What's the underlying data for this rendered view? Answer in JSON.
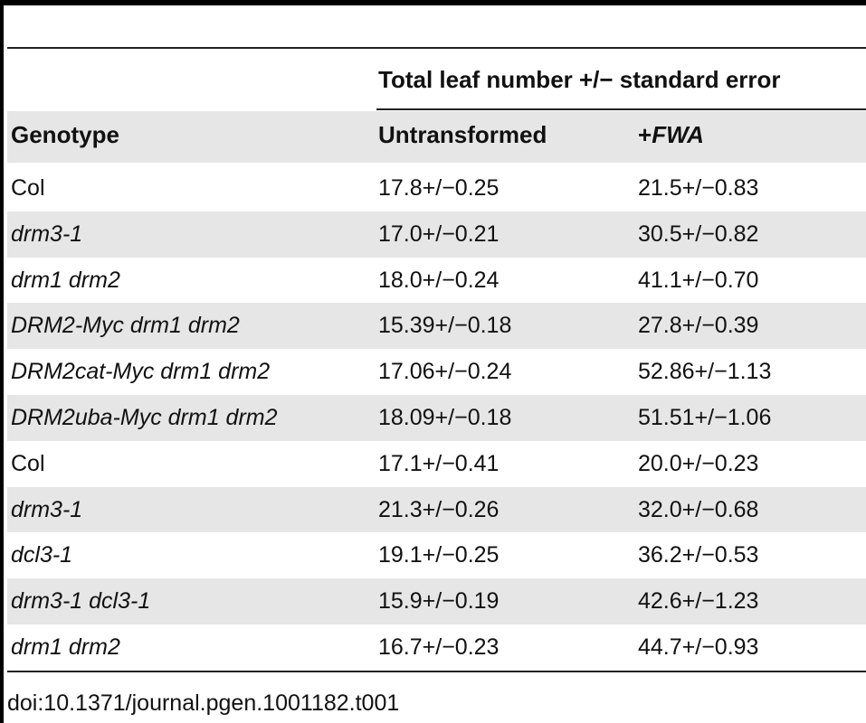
{
  "table": {
    "group_header": "Total leaf number +/− standard error",
    "columns": {
      "genotype": "Genotype",
      "untransformed": "Untransformed",
      "fwa_plus": "+",
      "fwa_name": "FWA"
    },
    "rows": [
      {
        "genotype": "Col",
        "untransformed": "17.8+/−0.25",
        "fwa": "21.5+/−0.83"
      },
      {
        "genotype": "drm3-1",
        "untransformed": "17.0+/−0.21",
        "fwa": "30.5+/−0.82"
      },
      {
        "genotype": "drm1 drm2",
        "untransformed": "18.0+/−0.24",
        "fwa": "41.1+/−0.70"
      },
      {
        "genotype": "DRM2-Myc drm1 drm2",
        "untransformed": "15.39+/−0.18",
        "fwa": "27.8+/−0.39"
      },
      {
        "genotype": "DRM2cat-Myc drm1 drm2",
        "untransformed": "17.06+/−0.24",
        "fwa": "52.86+/−1.13"
      },
      {
        "genotype": "DRM2uba-Myc drm1 drm2",
        "untransformed": "18.09+/−0.18",
        "fwa": "51.51+/−1.06"
      },
      {
        "genotype": "Col",
        "untransformed": "17.1+/−0.41",
        "fwa": "20.0+/−0.23"
      },
      {
        "genotype": "drm3-1",
        "untransformed": "21.3+/−0.26",
        "fwa": "32.0+/−0.68"
      },
      {
        "genotype": "dcl3-1",
        "untransformed": "19.1+/−0.25",
        "fwa": "36.2+/−0.53"
      },
      {
        "genotype": "drm3-1 dcl3-1",
        "untransformed": "15.9+/−0.19",
        "fwa": "42.6+/−1.23"
      },
      {
        "genotype": "drm1 drm2",
        "untransformed": "16.7+/−0.23",
        "fwa": "44.7+/−0.93"
      }
    ]
  },
  "doi": "doi:10.1371/journal.pgen.1001182.t001"
}
